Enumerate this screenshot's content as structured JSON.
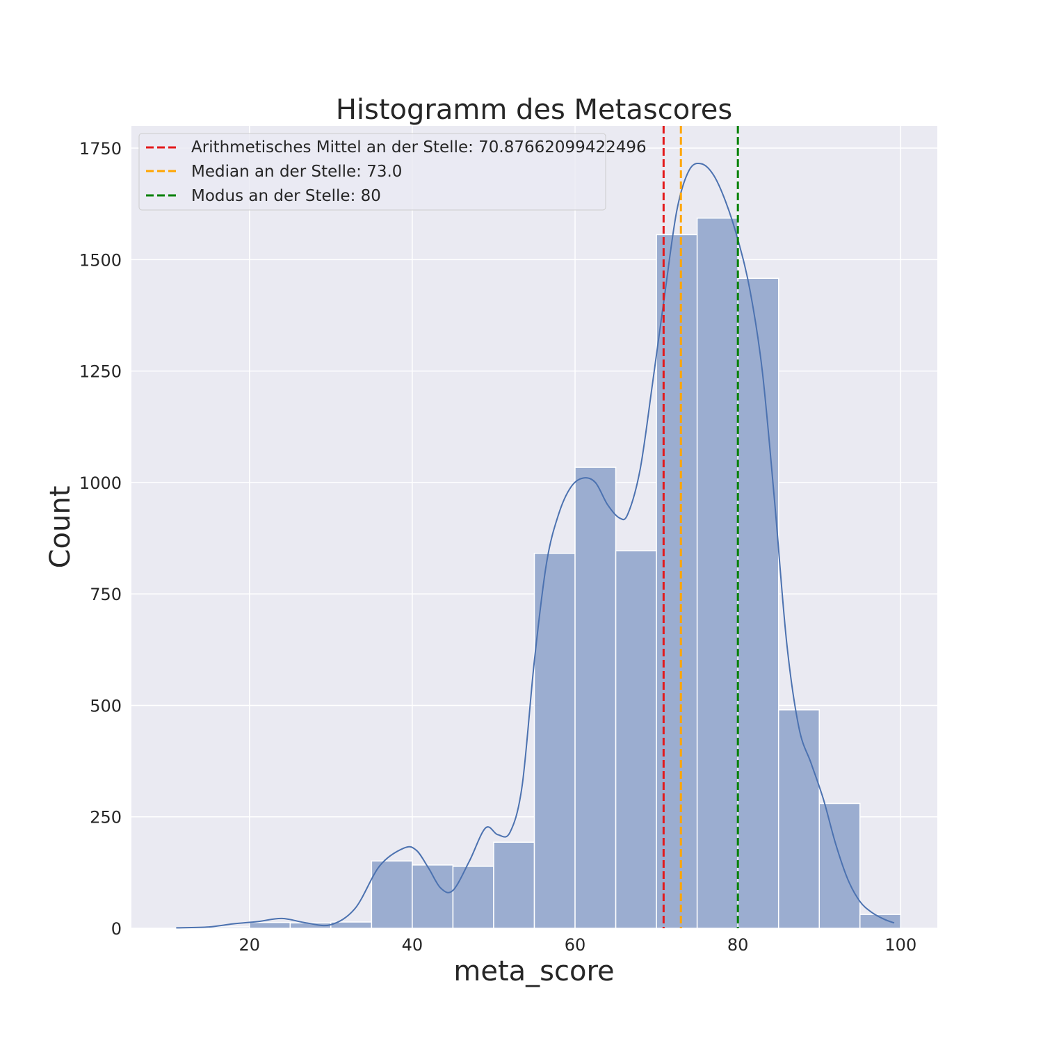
{
  "chart_data": {
    "type": "bar",
    "title": "Histogramm des Metascores",
    "xlabel": "meta_score",
    "ylabel": "Count",
    "xlim": [
      5.5,
      104.5
    ],
    "ylim": [
      0,
      1800
    ],
    "xticks": [
      "20",
      "40",
      "60",
      "80",
      "100"
    ],
    "yticks": [
      "0",
      "250",
      "500",
      "750",
      "1000",
      "1250",
      "1500",
      "1750"
    ],
    "grid": true,
    "legend_position": "top-left",
    "bar_color": "#9badd0",
    "line_color": "#4c72b0",
    "bins": [
      {
        "x0": 15,
        "x1": 20,
        "count": 3
      },
      {
        "x0": 20,
        "x1": 25,
        "count": 13
      },
      {
        "x0": 25,
        "x1": 30,
        "count": 12
      },
      {
        "x0": 30,
        "x1": 35,
        "count": 14
      },
      {
        "x0": 35,
        "x1": 40,
        "count": 151
      },
      {
        "x0": 40,
        "x1": 45,
        "count": 142
      },
      {
        "x0": 45,
        "x1": 50,
        "count": 139
      },
      {
        "x0": 50,
        "x1": 55,
        "count": 193
      },
      {
        "x0": 55,
        "x1": 60,
        "count": 841
      },
      {
        "x0": 60,
        "x1": 65,
        "count": 1034
      },
      {
        "x0": 65,
        "x1": 70,
        "count": 847
      },
      {
        "x0": 70,
        "x1": 75,
        "count": 1556
      },
      {
        "x0": 75,
        "x1": 80,
        "count": 1593
      },
      {
        "x0": 80,
        "x1": 85,
        "count": 1458
      },
      {
        "x0": 85,
        "x1": 90,
        "count": 490
      },
      {
        "x0": 90,
        "x1": 95,
        "count": 280
      },
      {
        "x0": 95,
        "x1": 100,
        "count": 31
      }
    ],
    "kde": {
      "x": [
        11,
        15,
        18,
        21,
        24,
        27,
        30,
        33,
        36,
        39,
        40.5,
        42,
        43.5,
        45,
        47,
        49,
        50.5,
        52,
        53.5,
        55,
        56.5,
        58,
        59.5,
        61,
        62.5,
        64,
        65.5,
        66.5,
        68,
        69.5,
        71,
        72.5,
        74,
        75.5,
        77,
        78.5,
        80,
        81.5,
        83,
        84.5,
        86,
        87.5,
        89,
        90.5,
        92,
        93.5,
        95,
        96.5,
        98,
        99.2
      ],
      "y": [
        1,
        3,
        10,
        15,
        22,
        12,
        8,
        45,
        140,
        180,
        175,
        135,
        90,
        85,
        150,
        225,
        210,
        215,
        320,
        600,
        820,
        930,
        990,
        1010,
        1000,
        950,
        920,
        930,
        1030,
        1220,
        1420,
        1610,
        1700,
        1715,
        1690,
        1630,
        1545,
        1430,
        1250,
        960,
        640,
        450,
        370,
        290,
        190,
        110,
        60,
        35,
        20,
        12
      ]
    },
    "vlines": [
      {
        "name": "Arithmetisches Mittel an der Stelle: 70.87662099422496",
        "x": 70.87662099422496,
        "color": "#e31a1c"
      },
      {
        "name": "Median an der Stelle: 73.0",
        "x": 73.0,
        "color": "#ffa500"
      },
      {
        "name": "Modus an der Stelle: 80",
        "x": 80,
        "color": "#008000"
      }
    ]
  }
}
